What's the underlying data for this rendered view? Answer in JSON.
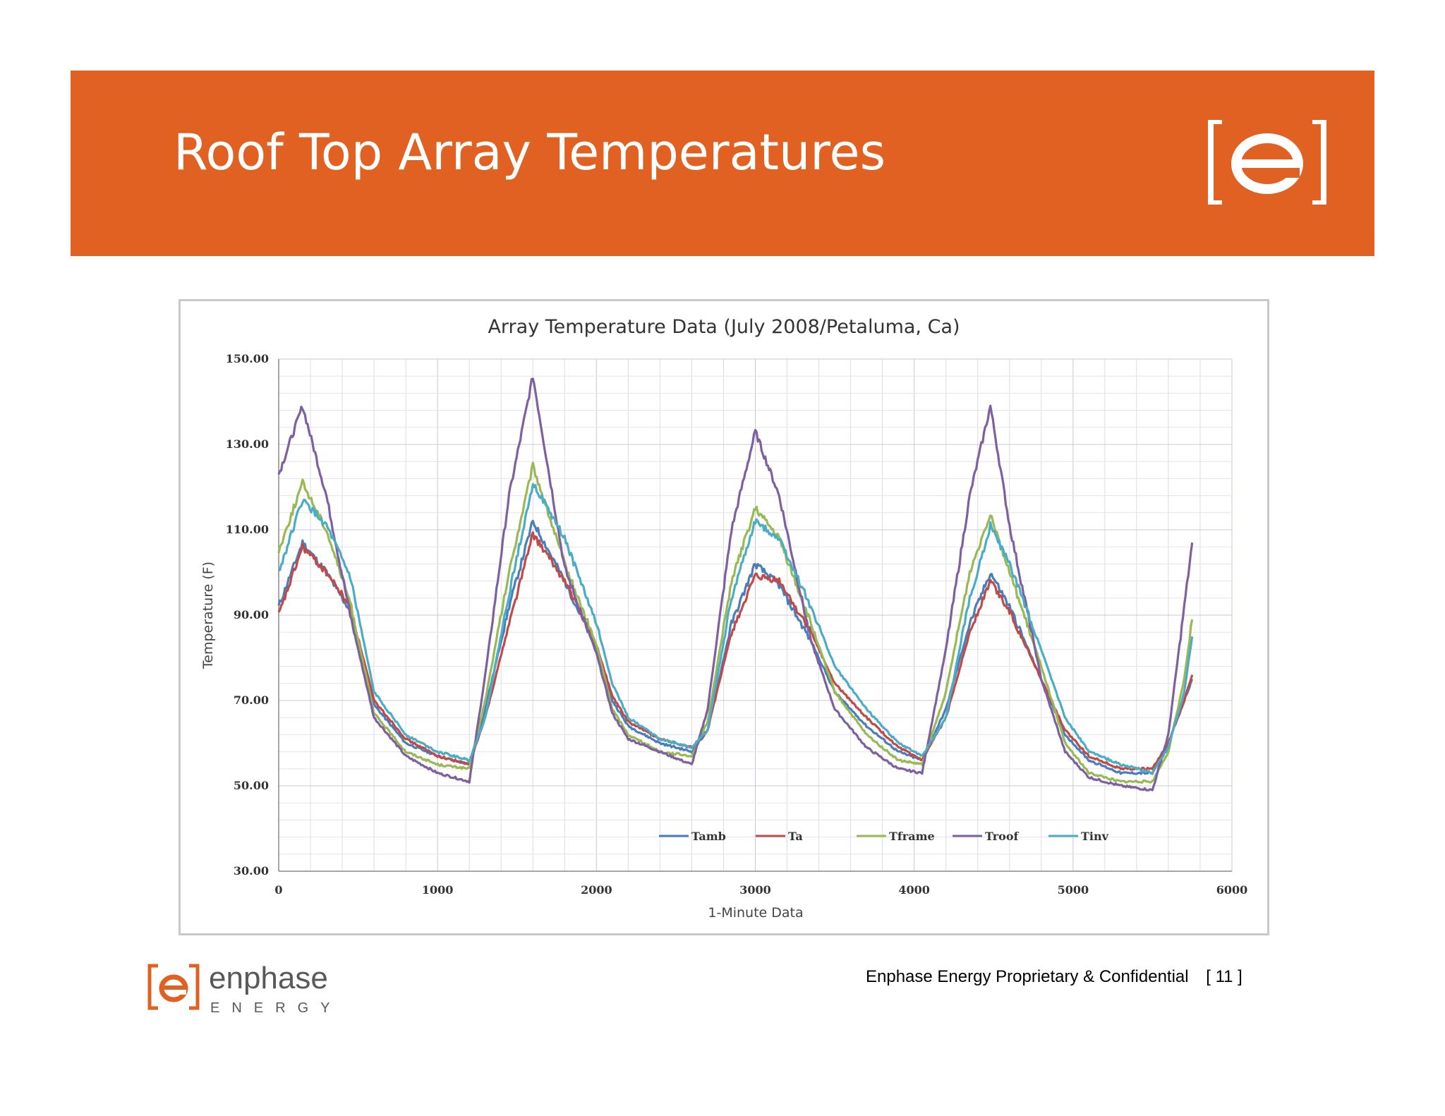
{
  "slide": {
    "title": "Roof Top Array Temperatures",
    "accent_color": "#e06121",
    "logo_icon": "enphase-bracket-e-logo",
    "footer": {
      "confidential": "Enphase Energy Proprietary & Confidential",
      "page": "[ 11 ]",
      "brand_name": "enphase",
      "brand_sub": "ENERGY"
    }
  },
  "chart_data": {
    "type": "line",
    "title": "Array Temperature Data (July 2008/Petaluma, Ca)",
    "xlabel": "1-Minute Data",
    "ylabel": "Temperature (F)",
    "xlim": [
      0,
      6000
    ],
    "ylim": [
      30,
      150
    ],
    "x_ticks": [
      0,
      1000,
      2000,
      3000,
      4000,
      5000,
      6000
    ],
    "y_ticks": [
      30,
      50,
      70,
      90,
      110,
      130,
      150
    ],
    "y_tick_labels": [
      "30.00",
      "50.00",
      "70.00",
      "90.00",
      "110.00",
      "130.00",
      "150.00"
    ],
    "grid": true,
    "legend_position": "bottom-right",
    "series": [
      {
        "name": "Tamb",
        "color": "#4a7ebb",
        "points": [
          [
            0,
            92
          ],
          [
            150,
            107
          ],
          [
            300,
            100
          ],
          [
            450,
            91
          ],
          [
            600,
            69
          ],
          [
            800,
            60
          ],
          [
            1000,
            57
          ],
          [
            1200,
            55
          ],
          [
            1300,
            68
          ],
          [
            1450,
            92
          ],
          [
            1600,
            112
          ],
          [
            1800,
            98
          ],
          [
            2000,
            82
          ],
          [
            2100,
            70
          ],
          [
            2200,
            64
          ],
          [
            2400,
            60
          ],
          [
            2600,
            58
          ],
          [
            2700,
            63
          ],
          [
            2850,
            88
          ],
          [
            3000,
            102
          ],
          [
            3150,
            97
          ],
          [
            3350,
            84
          ],
          [
            3500,
            72
          ],
          [
            3700,
            64
          ],
          [
            3900,
            58
          ],
          [
            4050,
            56
          ],
          [
            4200,
            68
          ],
          [
            4350,
            88
          ],
          [
            4480,
            100
          ],
          [
            4600,
            92
          ],
          [
            4800,
            75
          ],
          [
            4950,
            62
          ],
          [
            5100,
            56
          ],
          [
            5300,
            53
          ],
          [
            5500,
            53
          ],
          [
            5600,
            60
          ],
          [
            5700,
            70
          ],
          [
            5750,
            75
          ]
        ]
      },
      {
        "name": "Ta",
        "color": "#be4b48",
        "points": [
          [
            0,
            90
          ],
          [
            150,
            106
          ],
          [
            300,
            100
          ],
          [
            450,
            92
          ],
          [
            600,
            70
          ],
          [
            800,
            61
          ],
          [
            1000,
            57
          ],
          [
            1200,
            55
          ],
          [
            1300,
            66
          ],
          [
            1450,
            88
          ],
          [
            1600,
            109
          ],
          [
            1800,
            98
          ],
          [
            2000,
            83
          ],
          [
            2100,
            71
          ],
          [
            2200,
            65
          ],
          [
            2400,
            61
          ],
          [
            2600,
            59
          ],
          [
            2700,
            63
          ],
          [
            2850,
            86
          ],
          [
            3000,
            99
          ],
          [
            3150,
            98
          ],
          [
            3350,
            86
          ],
          [
            3500,
            74
          ],
          [
            3700,
            66
          ],
          [
            3900,
            59
          ],
          [
            4050,
            56
          ],
          [
            4200,
            66
          ],
          [
            4350,
            86
          ],
          [
            4480,
            98
          ],
          [
            4600,
            91
          ],
          [
            4800,
            75
          ],
          [
            4950,
            63
          ],
          [
            5100,
            57
          ],
          [
            5300,
            54
          ],
          [
            5500,
            54
          ],
          [
            5600,
            60
          ],
          [
            5700,
            70
          ],
          [
            5750,
            76
          ]
        ]
      },
      {
        "name": "Tframe",
        "color": "#98b954",
        "points": [
          [
            0,
            105
          ],
          [
            150,
            121
          ],
          [
            300,
            110
          ],
          [
            450,
            93
          ],
          [
            600,
            67
          ],
          [
            800,
            58
          ],
          [
            1000,
            55
          ],
          [
            1200,
            54
          ],
          [
            1300,
            70
          ],
          [
            1450,
            100
          ],
          [
            1600,
            125
          ],
          [
            1800,
            102
          ],
          [
            2000,
            83
          ],
          [
            2100,
            68
          ],
          [
            2200,
            62
          ],
          [
            2400,
            58
          ],
          [
            2600,
            57
          ],
          [
            2700,
            65
          ],
          [
            2850,
            98
          ],
          [
            3000,
            115
          ],
          [
            3150,
            108
          ],
          [
            3350,
            88
          ],
          [
            3500,
            72
          ],
          [
            3700,
            62
          ],
          [
            3900,
            56
          ],
          [
            4050,
            55
          ],
          [
            4200,
            72
          ],
          [
            4350,
            100
          ],
          [
            4480,
            114
          ],
          [
            4600,
            100
          ],
          [
            4800,
            78
          ],
          [
            4950,
            60
          ],
          [
            5100,
            53
          ],
          [
            5300,
            51
          ],
          [
            5500,
            51
          ],
          [
            5600,
            58
          ],
          [
            5700,
            75
          ],
          [
            5750,
            89
          ]
        ]
      },
      {
        "name": "Troof",
        "color": "#7d60a0",
        "points": [
          [
            0,
            123
          ],
          [
            150,
            139
          ],
          [
            300,
            118
          ],
          [
            450,
            90
          ],
          [
            600,
            66
          ],
          [
            800,
            57
          ],
          [
            1000,
            53
          ],
          [
            1200,
            51
          ],
          [
            1300,
            76
          ],
          [
            1450,
            118
          ],
          [
            1600,
            146
          ],
          [
            1800,
            101
          ],
          [
            2000,
            81
          ],
          [
            2100,
            67
          ],
          [
            2200,
            61
          ],
          [
            2400,
            58
          ],
          [
            2600,
            55
          ],
          [
            2700,
            68
          ],
          [
            2850,
            110
          ],
          [
            3000,
            133
          ],
          [
            3150,
            118
          ],
          [
            3350,
            84
          ],
          [
            3500,
            68
          ],
          [
            3700,
            59
          ],
          [
            3900,
            54
          ],
          [
            4050,
            53
          ],
          [
            4200,
            82
          ],
          [
            4350,
            118
          ],
          [
            4480,
            139
          ],
          [
            4600,
            111
          ],
          [
            4800,
            75
          ],
          [
            4950,
            58
          ],
          [
            5100,
            52
          ],
          [
            5300,
            50
          ],
          [
            5500,
            49
          ],
          [
            5600,
            62
          ],
          [
            5700,
            92
          ],
          [
            5750,
            107
          ]
        ]
      },
      {
        "name": "Tinv",
        "color": "#4bacc6",
        "points": [
          [
            0,
            100
          ],
          [
            150,
            117
          ],
          [
            300,
            111
          ],
          [
            450,
            99
          ],
          [
            600,
            72
          ],
          [
            800,
            62
          ],
          [
            1000,
            58
          ],
          [
            1200,
            56
          ],
          [
            1300,
            66
          ],
          [
            1450,
            95
          ],
          [
            1600,
            121
          ],
          [
            1800,
            108
          ],
          [
            2000,
            88
          ],
          [
            2100,
            74
          ],
          [
            2200,
            66
          ],
          [
            2400,
            61
          ],
          [
            2600,
            59
          ],
          [
            2700,
            63
          ],
          [
            2850,
            94
          ],
          [
            3000,
            112
          ],
          [
            3150,
            108
          ],
          [
            3350,
            92
          ],
          [
            3500,
            78
          ],
          [
            3700,
            68
          ],
          [
            3900,
            60
          ],
          [
            4050,
            57
          ],
          [
            4200,
            66
          ],
          [
            4350,
            94
          ],
          [
            4480,
            111
          ],
          [
            4600,
            102
          ],
          [
            4800,
            82
          ],
          [
            4950,
            66
          ],
          [
            5100,
            58
          ],
          [
            5300,
            55
          ],
          [
            5500,
            53
          ],
          [
            5600,
            59
          ],
          [
            5700,
            72
          ],
          [
            5750,
            85
          ]
        ]
      }
    ]
  }
}
